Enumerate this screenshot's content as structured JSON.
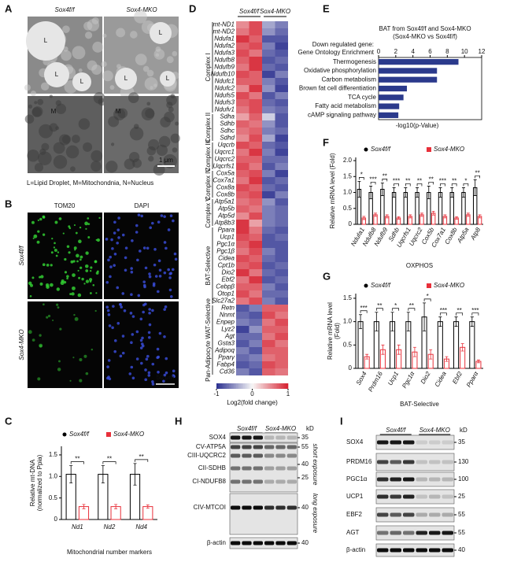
{
  "figure_a": {
    "label": "A",
    "columns": [
      "Sox4f/f",
      "Sox4-MKO"
    ],
    "annotations": [
      "L",
      "L",
      "L",
      "L",
      "L",
      "L",
      "M",
      "M"
    ],
    "scale_bar": "1 μm",
    "caption": "L=Lipid Droplet, M=Mitochondnia, N=Nucleus"
  },
  "figure_b": {
    "label": "B",
    "channels": [
      "TOM20",
      "DAPI"
    ],
    "rows": [
      "Sox4f/f",
      "Sox4-MKO"
    ],
    "scale_bar": "50 μm"
  },
  "figure_h": {
    "label": "H",
    "groups": [
      "Sox4f/f",
      "Sox4-MKO"
    ],
    "unit": "kD",
    "proteins": [
      "SOX4",
      "CV-ATP5A",
      "CIII-UQCRC2",
      "CII-SDHB",
      "CI-NDUFB8",
      "CIV-MTCOI",
      "β-actin"
    ],
    "markers": [
      35,
      55,
      40,
      25,
      40,
      40
    ],
    "exposures": [
      "short exposure",
      "long exposure"
    ]
  },
  "figure_i": {
    "label": "I",
    "groups": [
      "Sox4f/f",
      "Sox4-MKO"
    ],
    "unit": "kD",
    "proteins": [
      "SOX4",
      "PRDM16",
      "PGC1α",
      "UCP1",
      "EBF2",
      "AGT",
      "β-actin"
    ],
    "markers": [
      35,
      130,
      100,
      25,
      55,
      55,
      40
    ]
  },
  "chart_data": [
    {
      "type": "bar",
      "panel": "C",
      "ylabel": [
        "Relative mt-DNA",
        "(normalized to Ppia)"
      ],
      "xlabel": "Mitochondrial number markers",
      "categories": [
        "Nd1",
        "Nd2",
        "Nd4"
      ],
      "series": [
        {
          "name": "Sox4f/f",
          "color": "#000000",
          "values": [
            1.05,
            1.05,
            1.05
          ],
          "errors": [
            0.2,
            0.2,
            0.25
          ]
        },
        {
          "name": "Sox4-MKO",
          "color": "#e8303a",
          "values": [
            0.3,
            0.3,
            0.3
          ],
          "errors": [
            0.05,
            0.05,
            0.04
          ]
        }
      ],
      "significance": [
        "**",
        "**",
        "**"
      ],
      "ylim": [
        0,
        1.7
      ],
      "yticks": [
        0,
        0.5,
        {
          "value": 1,
          "label": "1.0"
        },
        1.5
      ]
    },
    {
      "type": "heatmap",
      "panel": "D",
      "columns": [
        "Sox4f/f",
        "Sox4-MKO"
      ],
      "zlim": [
        -1,
        1
      ],
      "colorscale": [
        "#2a2f8f",
        "#f7f7f7",
        "#d6202f"
      ],
      "colorbar_ticks": [
        -1,
        0,
        1
      ],
      "colorbar_label": "Log2(fold change)",
      "groups": [
        {
          "name": "Complex I",
          "rows": [
            {
              "gene": "mt-ND1",
              "values": [
                0.5,
                0.8,
                -0.4,
                -0.6
              ]
            },
            {
              "gene": "mt-ND2",
              "values": [
                0.6,
                0.8,
                -0.5,
                -0.7
              ]
            },
            {
              "gene": "Ndufa1",
              "values": [
                0.9,
                0.7,
                -0.8,
                -0.8
              ]
            },
            {
              "gene": "Ndufa2",
              "values": [
                0.7,
                0.8,
                -0.6,
                -0.9
              ]
            },
            {
              "gene": "Ndufa3",
              "values": [
                0.8,
                0.6,
                -0.7,
                -0.8
              ]
            },
            {
              "gene": "Ndufb8",
              "values": [
                0.7,
                0.9,
                -0.8,
                -0.7
              ]
            },
            {
              "gene": "Ndufb9",
              "values": [
                0.6,
                0.9,
                -0.7,
                -0.8
              ]
            },
            {
              "gene": "Ndufb10",
              "values": [
                0.8,
                0.7,
                -0.9,
                -0.6
              ]
            },
            {
              "gene": "Ndufc1",
              "values": [
                0.7,
                0.7,
                -0.6,
                -0.8
              ]
            },
            {
              "gene": "Ndufc2",
              "values": [
                0.5,
                0.9,
                -0.5,
                -0.9
              ]
            },
            {
              "gene": "Ndufs5",
              "values": [
                0.8,
                0.6,
                -0.8,
                -0.6
              ]
            },
            {
              "gene": "Ndufs3",
              "values": [
                0.7,
                0.8,
                -0.7,
                -0.8
              ]
            },
            {
              "gene": "Ndufv1",
              "values": [
                0.6,
                0.8,
                -0.6,
                -0.7
              ]
            }
          ]
        },
        {
          "name": "Complex II",
          "rows": [
            {
              "gene": "Sdha",
              "values": [
                0.4,
                0.7,
                -0.2,
                -0.8
              ]
            },
            {
              "gene": "Sdhb",
              "values": [
                0.7,
                0.6,
                -0.5,
                -0.8
              ]
            },
            {
              "gene": "Sdhc",
              "values": [
                0.6,
                0.7,
                -0.6,
                -0.7
              ]
            },
            {
              "gene": "Sdhd",
              "values": [
                0.5,
                0.8,
                -0.4,
                -0.9
              ]
            }
          ]
        },
        {
          "name": "Complex III",
          "rows": [
            {
              "gene": "Uqcrb",
              "values": [
                0.8,
                0.7,
                -0.7,
                -0.8
              ]
            },
            {
              "gene": "Uqcrc1",
              "values": [
                0.6,
                0.9,
                -0.6,
                -0.9
              ]
            },
            {
              "gene": "Uqcrc2",
              "values": [
                0.7,
                0.7,
                -0.7,
                -0.7
              ]
            },
            {
              "gene": "Uqcrfs1",
              "values": [
                0.8,
                0.6,
                -0.8,
                -0.6
              ]
            }
          ]
        },
        {
          "name": "Complex IV",
          "rows": [
            {
              "gene": "Cox5a",
              "values": [
                0.7,
                0.8,
                -0.6,
                -0.9
              ]
            },
            {
              "gene": "Cox7a1",
              "values": [
                0.6,
                0.9,
                -0.8,
                -0.7
              ]
            },
            {
              "gene": "Cox8a",
              "values": [
                0.8,
                0.7,
                -0.7,
                -0.8
              ]
            },
            {
              "gene": "Cox8b",
              "values": [
                0.7,
                0.8,
                -0.9,
                -0.6
              ]
            }
          ]
        },
        {
          "name": "Complex V",
          "rows": [
            {
              "gene": "Atp5a1",
              "values": [
                0.6,
                0.7,
                -0.5,
                -0.8
              ]
            },
            {
              "gene": "Atp5b",
              "values": [
                0.7,
                0.6,
                -0.6,
                -0.7
              ]
            },
            {
              "gene": "Atp5d",
              "values": [
                0.5,
                0.8,
                -0.6,
                -0.7
              ]
            },
            {
              "gene": "Atp8b3",
              "values": [
                0.9,
                0.4,
                -0.6,
                -0.7
              ]
            }
          ]
        },
        {
          "name": "BAT-Selective",
          "rows": [
            {
              "gene": "Ppara",
              "values": [
                0.9,
                0.6,
                -0.7,
                -0.8
              ]
            },
            {
              "gene": "Ucp1",
              "values": [
                0.8,
                0.7,
                -0.8,
                -0.7
              ]
            },
            {
              "gene": "Pgc1α",
              "values": [
                0.7,
                0.9,
                -0.8,
                -0.8
              ]
            },
            {
              "gene": "Pgc1β",
              "values": [
                0.6,
                0.8,
                -0.6,
                -0.8
              ]
            },
            {
              "gene": "Cidea",
              "values": [
                0.8,
                0.7,
                -0.7,
                -0.8
              ]
            },
            {
              "gene": "Cpt1b",
              "values": [
                0.7,
                0.8,
                -0.8,
                -0.7
              ]
            },
            {
              "gene": "Dio2",
              "values": [
                0.9,
                0.6,
                -0.7,
                -0.8
              ]
            },
            {
              "gene": "Ebf2",
              "values": [
                0.6,
                0.9,
                -0.8,
                -0.7
              ]
            },
            {
              "gene": "Cebpβ",
              "values": [
                0.7,
                0.7,
                -0.6,
                -0.8
              ]
            },
            {
              "gene": "Otop1",
              "values": [
                0.8,
                0.6,
                -0.7,
                -0.7
              ]
            },
            {
              "gene": "Slc27a2",
              "values": [
                0.6,
                0.8,
                -0.6,
                -0.8
              ]
            }
          ]
        },
        {
          "name": "Pan-Adipocyte WAT-Selective",
          "rows": [
            {
              "gene": "Retn",
              "values": [
                -0.8,
                -0.6,
                0.7,
                0.7
              ]
            },
            {
              "gene": "Nnmt",
              "values": [
                -0.7,
                -0.8,
                0.8,
                0.6
              ]
            },
            {
              "gene": "Enpep",
              "values": [
                -0.6,
                -0.7,
                0.6,
                0.8
              ]
            },
            {
              "gene": "Lyz2",
              "values": [
                -0.9,
                -0.5,
                0.7,
                0.7
              ]
            },
            {
              "gene": "Agt",
              "values": [
                -0.7,
                -0.7,
                0.6,
                0.8
              ]
            },
            {
              "gene": "Gsta3",
              "values": [
                -0.8,
                -0.6,
                0.8,
                0.6
              ]
            },
            {
              "gene": "Adipoq",
              "values": [
                -0.6,
                -0.8,
                0.7,
                0.7
              ]
            },
            {
              "gene": "Pparγ",
              "values": [
                -0.7,
                -0.6,
                0.6,
                0.7
              ]
            },
            {
              "gene": "Fabp4",
              "values": [
                -0.8,
                -0.7,
                0.8,
                0.7
              ]
            },
            {
              "gene": "Cd36",
              "values": [
                -0.6,
                -0.8,
                0.7,
                0.6
              ]
            }
          ]
        }
      ]
    },
    {
      "type": "hbar",
      "panel": "E",
      "title": [
        "BAT from Sox4f/f and Sox4-MKO",
        "(Sox4-MKO vs Sox4f/f)"
      ],
      "subtitle": [
        "Down regulated gene:",
        "Gene Ontology Enrichment"
      ],
      "xlabel": "-log10(p-Value)",
      "categories": [
        "Thermogenesis",
        "Oxidative phosphorylation",
        "Carbon metabolism",
        "Brown fat cell differentiation",
        "TCA cycle",
        "Fatty acid metabolism",
        "cAMP signaling pathway"
      ],
      "values": [
        9.3,
        6.8,
        6.8,
        3.3,
        2.9,
        2.4,
        2.3
      ],
      "color": "#2b3a8c",
      "xlim": [
        0,
        12
      ],
      "xticks": [
        0,
        2,
        4,
        6,
        8,
        10,
        12
      ]
    },
    {
      "type": "bar",
      "panel": "F",
      "ylabel": [
        "Relative mRNA level (Fold)"
      ],
      "xlabel": "OXPHOS",
      "categories": [
        "Ndufa1",
        "Ndufb8",
        "Ndufb9",
        "Sdhb",
        "Uqcrfs1",
        "Uqcrc2",
        "Cox5b",
        "Cox7a1",
        "Cox8b",
        "Atp5a",
        "Atp8"
      ],
      "series": [
        {
          "name": "Sox4f/f",
          "color": "#000000",
          "values": [
            1.1,
            1.0,
            1.1,
            1.0,
            1.0,
            1.0,
            1.0,
            1.0,
            1.0,
            1.0,
            1.15
          ],
          "errors": [
            0.25,
            0.2,
            0.2,
            0.15,
            0.15,
            0.15,
            0.2,
            0.15,
            0.15,
            0.15,
            0.25
          ]
        },
        {
          "name": "Sox4-MKO",
          "color": "#e8303a",
          "values": [
            0.2,
            0.3,
            0.25,
            0.2,
            0.25,
            0.3,
            0.35,
            0.25,
            0.2,
            0.3,
            0.25
          ],
          "errors": [
            0.05,
            0.05,
            0.05,
            0.04,
            0.05,
            0.05,
            0.06,
            0.05,
            0.04,
            0.05,
            0.05
          ]
        }
      ],
      "significance": [
        "*",
        "***",
        "**",
        "***",
        "**",
        "**",
        "**",
        "***",
        "**",
        "*",
        "**"
      ],
      "ylim": [
        0,
        2.1
      ],
      "yticks": [
        0,
        0.5,
        {
          "value": 1,
          "label": "1.0"
        },
        1.5,
        {
          "value": 2,
          "label": "2.0"
        }
      ]
    },
    {
      "type": "bar",
      "panel": "G",
      "ylabel": [
        "Relative mRNA level",
        "(Fold)"
      ],
      "xlabel": "BAT-Selective",
      "categories": [
        "Sox4",
        "Prdm16",
        "Ucp1",
        "Pgc1α",
        "Dio2",
        "Cidea",
        "Ebf2",
        "Pparα"
      ],
      "series": [
        {
          "name": "Sox4f/f",
          "color": "#000000",
          "values": [
            1.0,
            1.0,
            1.0,
            1.0,
            1.1,
            1.0,
            1.0,
            1.0
          ],
          "errors": [
            0.15,
            0.2,
            0.2,
            0.2,
            0.3,
            0.1,
            0.1,
            0.1
          ]
        },
        {
          "name": "Sox4-MKO",
          "color": "#e8303a",
          "values": [
            0.25,
            0.4,
            0.4,
            0.35,
            0.3,
            0.2,
            0.45,
            0.15
          ],
          "errors": [
            0.05,
            0.1,
            0.1,
            0.1,
            0.1,
            0.05,
            0.08,
            0.03
          ]
        }
      ],
      "significance": [
        "***",
        "**",
        "*",
        "**",
        "*",
        "***",
        "**",
        "***"
      ],
      "ylim": [
        0,
        1.6
      ],
      "yticks": [
        0,
        0.5,
        {
          "value": 1,
          "label": "1.0"
        },
        1.5
      ]
    }
  ]
}
